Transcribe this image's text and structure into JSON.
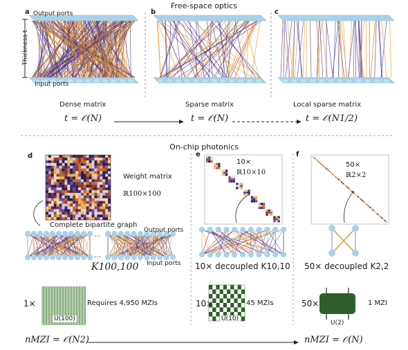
{
  "headers": {
    "free_space": "Free-space optics",
    "on_chip": "On-chip photonics"
  },
  "panels": {
    "a": "a",
    "b": "b",
    "c": "c",
    "d": "d",
    "e": "e",
    "f": "f"
  },
  "panel_a": {
    "output_ports": "Output ports",
    "input_ports": "Input ports",
    "thickness": "Thickness t",
    "caption": "Dense matrix"
  },
  "panel_b": {
    "caption": "Sparse matrix"
  },
  "panel_c": {
    "caption": "Local sparse matrix"
  },
  "scaling_top": {
    "eq1": "t = 𝒪(N)",
    "eq2": "t = 𝒪(N)",
    "eq3": "t = 𝒪(N1/2)"
  },
  "panel_d": {
    "weight_matrix": "Weight matrix",
    "dims": "ℝ100×100",
    "bipartite": "Complete bipartite graph",
    "output_ports": "Output ports",
    "input_ports": "Input ports",
    "graph": "K100,100",
    "multiplier": "1×",
    "requires": "Requires 4,950 MZIs",
    "unitary": "U(100)"
  },
  "panel_e": {
    "count": "10×",
    "dims": "ℝ10×10",
    "decoupled": "10× decoupled K10,10",
    "multiplier": "10×",
    "mzis": "45 MZIs",
    "unitary": "U(10)"
  },
  "panel_f": {
    "count": "50×",
    "dims": "ℝ2×2",
    "decoupled": "50× decoupled K2,2",
    "multiplier": "50×",
    "mzis": "1 MZI",
    "unitary": "U(2)"
  },
  "scaling_bottom": {
    "eq1": "nMZI = 𝒪(N2)",
    "eq2": "nMZI = 𝒪(N)"
  },
  "colors": {
    "port_blue": "#a9d2ea",
    "edge_purple": "#4b3a8f",
    "edge_orange": "#e6952a",
    "mzi_green": "#2f5f2a"
  }
}
